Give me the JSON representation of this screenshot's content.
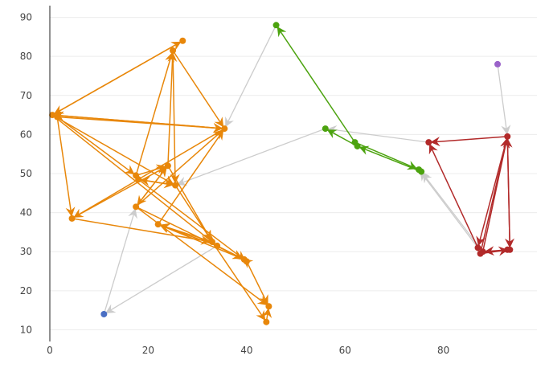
{
  "chart_data": {
    "type": "scatter",
    "title": "",
    "xlabel": "",
    "ylabel": "",
    "xlim": [
      0,
      99
    ],
    "ylim": [
      7,
      93
    ],
    "x_ticks": [
      0,
      20,
      40,
      60,
      80
    ],
    "y_ticks": [
      10,
      20,
      30,
      40,
      50,
      60,
      70,
      80,
      90
    ],
    "grid": true,
    "colors": {
      "orange": "#E8870A",
      "green": "#4CA30F",
      "red": "#B22A2A",
      "gray": "#CCCCCC",
      "blue": "#4A6FC4",
      "purple": "#9A62C9"
    },
    "series": [
      {
        "name": "orange",
        "color": "#E8870A",
        "points": [
          [
            27,
            84
          ],
          [
            25,
            81.5
          ],
          [
            0.5,
            65
          ],
          [
            1.5,
            64.5
          ],
          [
            35.5,
            61.5
          ],
          [
            17.5,
            49.5
          ],
          [
            18,
            48.5
          ],
          [
            24,
            52
          ],
          [
            25.5,
            47
          ],
          [
            4.5,
            38.5
          ],
          [
            17.5,
            41.5
          ],
          [
            22,
            37
          ],
          [
            33,
            32.5
          ],
          [
            34,
            31.5
          ],
          [
            39.5,
            28
          ],
          [
            40,
            27.5
          ],
          [
            44.5,
            16
          ],
          [
            44,
            12
          ]
        ],
        "edges": [
          [
            [
              0.5,
              65
            ],
            [
              27,
              84
            ]
          ],
          [
            [
              27,
              84
            ],
            [
              0.5,
              65
            ]
          ],
          [
            [
              1.5,
              64.5
            ],
            [
              35.5,
              61.5
            ]
          ],
          [
            [
              35.5,
              61.5
            ],
            [
              0.5,
              65
            ]
          ],
          [
            [
              0.5,
              65
            ],
            [
              35.5,
              61.5
            ]
          ],
          [
            [
              25,
              81.5
            ],
            [
              35.5,
              61.5
            ]
          ],
          [
            [
              17.5,
              49.5
            ],
            [
              25,
              81.5
            ]
          ],
          [
            [
              24,
              52
            ],
            [
              25,
              81.5
            ]
          ],
          [
            [
              25,
              81.5
            ],
            [
              25.5,
              47
            ]
          ],
          [
            [
              1.5,
              64.5
            ],
            [
              17.5,
              49.5
            ]
          ],
          [
            [
              0.5,
              65
            ],
            [
              25.5,
              47
            ]
          ],
          [
            [
              1.5,
              64.5
            ],
            [
              4.5,
              38.5
            ]
          ],
          [
            [
              0.5,
              65
            ],
            [
              34,
              31.5
            ]
          ],
          [
            [
              17.5,
              41.5
            ],
            [
              35.5,
              61.5
            ]
          ],
          [
            [
              35.5,
              61.5
            ],
            [
              4.5,
              38.5
            ]
          ],
          [
            [
              4.5,
              38.5
            ],
            [
              24,
              52
            ]
          ],
          [
            [
              4.5,
              38.5
            ],
            [
              33,
              32.5
            ]
          ],
          [
            [
              17.5,
              49.5
            ],
            [
              24,
              52
            ]
          ],
          [
            [
              18,
              48.5
            ],
            [
              25.5,
              47
            ]
          ],
          [
            [
              17.5,
              41.5
            ],
            [
              24,
              52
            ]
          ],
          [
            [
              24,
              52
            ],
            [
              17.5,
              41.5
            ]
          ],
          [
            [
              25.5,
              47
            ],
            [
              18,
              48.5
            ]
          ],
          [
            [
              22,
              37
            ],
            [
              35.5,
              61.5
            ]
          ],
          [
            [
              18,
              48.5
            ],
            [
              40,
              27.5
            ]
          ],
          [
            [
              17.5,
              41.5
            ],
            [
              39.5,
              28
            ]
          ],
          [
            [
              25.5,
              47
            ],
            [
              33,
              32.5
            ]
          ],
          [
            [
              17.5,
              41.5
            ],
            [
              44.5,
              16
            ]
          ],
          [
            [
              33,
              32.5
            ],
            [
              22,
              37
            ]
          ],
          [
            [
              34,
              31.5
            ],
            [
              22,
              37
            ]
          ],
          [
            [
              39.5,
              28
            ],
            [
              22,
              37
            ]
          ],
          [
            [
              34,
              31.5
            ],
            [
              39.5,
              28
            ]
          ],
          [
            [
              33,
              32.5
            ],
            [
              44,
              12
            ]
          ],
          [
            [
              44,
              12
            ],
            [
              44.5,
              16
            ]
          ],
          [
            [
              40,
              27.5
            ],
            [
              44.5,
              16
            ]
          ],
          [
            [
              39.5,
              28
            ],
            [
              40,
              27.5
            ]
          ],
          [
            [
              24,
              52
            ],
            [
              33,
              32.5
            ]
          ]
        ]
      },
      {
        "name": "green",
        "color": "#4CA30F",
        "points": [
          [
            46,
            88
          ],
          [
            56,
            61.5
          ],
          [
            62,
            58
          ],
          [
            62.5,
            57
          ],
          [
            75.5,
            50.5
          ],
          [
            75,
            51
          ]
        ],
        "edges": [
          [
            [
              62,
              58
            ],
            [
              46,
              88
            ]
          ],
          [
            [
              62.5,
              57
            ],
            [
              56,
              61.5
            ]
          ],
          [
            [
              62,
              58
            ],
            [
              75,
              51
            ]
          ],
          [
            [
              75.5,
              50.5
            ],
            [
              62.5,
              57
            ]
          ]
        ]
      },
      {
        "name": "red",
        "color": "#B22A2A",
        "points": [
          [
            93,
            59.5
          ],
          [
            77,
            58
          ],
          [
            87,
            31
          ],
          [
            88,
            30
          ],
          [
            87.5,
            29.5
          ],
          [
            93,
            30.5
          ],
          [
            93.5,
            30.5
          ]
        ],
        "edges": [
          [
            [
              93,
              59.5
            ],
            [
              77,
              58
            ]
          ],
          [
            [
              87,
              31
            ],
            [
              77,
              58
            ]
          ],
          [
            [
              88,
              30
            ],
            [
              93,
              59.5
            ]
          ],
          [
            [
              87.5,
              29.5
            ],
            [
              93,
              59.5
            ]
          ],
          [
            [
              93,
              59.5
            ],
            [
              87,
              31
            ]
          ],
          [
            [
              93.5,
              30.5
            ],
            [
              93,
              59.5
            ]
          ],
          [
            [
              93,
              59.5
            ],
            [
              93.5,
              30.5
            ]
          ],
          [
            [
              87.5,
              29.5
            ],
            [
              93.5,
              30.5
            ]
          ],
          [
            [
              93.5,
              30.5
            ],
            [
              88,
              30
            ]
          ]
        ]
      },
      {
        "name": "gray",
        "color": "#CCCCCC",
        "points": [],
        "edges": [
          [
            [
              46,
              88
            ],
            [
              35.5,
              61.5
            ]
          ],
          [
            [
              56,
              61.5
            ],
            [
              25.5,
              47
            ]
          ],
          [
            [
              77,
              58
            ],
            [
              56,
              61.5
            ]
          ],
          [
            [
              87,
              31
            ],
            [
              75,
              51
            ]
          ],
          [
            [
              88,
              30
            ],
            [
              75.5,
              50.5
            ]
          ],
          [
            [
              11,
              14
            ],
            [
              17.5,
              41.5
            ]
          ],
          [
            [
              34,
              31.5
            ],
            [
              11,
              14
            ]
          ],
          [
            [
              91,
              78
            ],
            [
              93,
              59.5
            ]
          ]
        ]
      },
      {
        "name": "blue",
        "color": "#4A6FC4",
        "points": [
          [
            11,
            14
          ]
        ],
        "edges": []
      },
      {
        "name": "purple",
        "color": "#9A62C9",
        "points": [
          [
            91,
            78
          ]
        ],
        "edges": []
      }
    ]
  }
}
